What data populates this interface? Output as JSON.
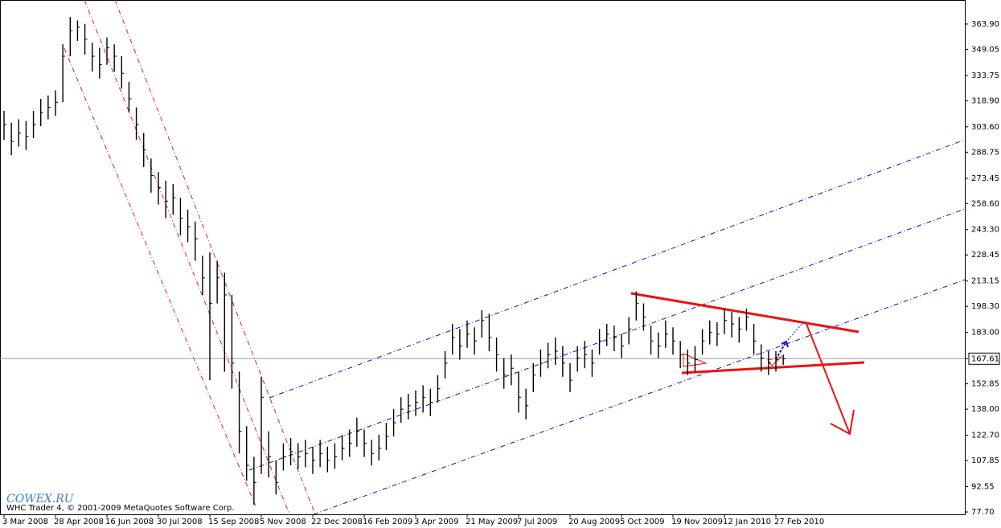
{
  "chart_data": {
    "type": "hlc",
    "watermark": "COWEX.RU",
    "copyright": "WHC Trader 4, © 2001-2009 MetaQuotes Software Corp.",
    "color": "#000000",
    "categories": [
      "3 Mar 2008",
      null,
      null,
      null,
      null,
      null,
      null,
      "28 Apr 2008",
      null,
      null,
      null,
      null,
      null,
      null,
      "16 Jun 2008",
      null,
      null,
      null,
      null,
      null,
      null,
      "30 Jul 2008",
      null,
      null,
      null,
      null,
      null,
      null,
      "15 Sep 2008",
      null,
      null,
      null,
      null,
      null,
      null,
      "5 Nov 2008",
      null,
      null,
      null,
      null,
      null,
      null,
      "22 Dec 2008",
      null,
      null,
      null,
      null,
      null,
      null,
      "16 Feb 2009",
      null,
      null,
      null,
      null,
      null,
      null,
      "3 Apr 2009",
      null,
      null,
      null,
      null,
      null,
      null,
      "21 May 2009",
      null,
      null,
      null,
      null,
      null,
      null,
      "7 Jul 2009",
      null,
      null,
      null,
      null,
      null,
      null,
      "20 Aug 2009",
      null,
      null,
      null,
      null,
      null,
      null,
      "5 Oct 2009",
      null,
      null,
      null,
      null,
      null,
      null,
      "19 Nov 2009",
      null,
      null,
      null,
      null,
      null,
      null,
      "12 Jan 2010",
      null,
      null,
      null,
      null,
      null,
      null,
      "27 Feb 2010",
      null
    ],
    "high": [
      313,
      306,
      308,
      307,
      313,
      320,
      322,
      325,
      352,
      368,
      366,
      364,
      353,
      350,
      356,
      352,
      345,
      330,
      315,
      300,
      285,
      277,
      272,
      270,
      262,
      255,
      248,
      228,
      230,
      225,
      218,
      205,
      160,
      128,
      110,
      157,
      125,
      108,
      118,
      121,
      118,
      120,
      116,
      120,
      116,
      118,
      123,
      126,
      133,
      126,
      120,
      123,
      130,
      138,
      145,
      147,
      149,
      152,
      150,
      158,
      172,
      188,
      185,
      190,
      186,
      196,
      194,
      180,
      168,
      170,
      160,
      150,
      165,
      173,
      177,
      180,
      175,
      165,
      175,
      178,
      173,
      185,
      188,
      187,
      182,
      192,
      207,
      200,
      187,
      183,
      190,
      186,
      178,
      173,
      175,
      185,
      190,
      189,
      197,
      195,
      192,
      197,
      188,
      176,
      172,
      172,
      170
    ],
    "low": [
      296,
      287,
      292,
      290,
      297,
      304,
      308,
      310,
      318,
      345,
      354,
      346,
      336,
      332,
      340,
      336,
      326,
      312,
      296,
      280,
      265,
      258,
      250,
      252,
      240,
      236,
      225,
      205,
      155,
      200,
      160,
      150,
      112,
      96,
      82,
      100,
      98,
      88,
      102,
      105,
      103,
      104,
      100,
      104,
      101,
      103,
      108,
      110,
      116,
      110,
      105,
      108,
      114,
      122,
      130,
      132,
      134,
      136,
      134,
      142,
      156,
      170,
      167,
      174,
      170,
      180,
      172,
      160,
      150,
      152,
      136,
      132,
      148,
      157,
      162,
      164,
      157,
      148,
      160,
      162,
      157,
      170,
      175,
      172,
      168,
      176,
      190,
      184,
      170,
      168,
      174,
      170,
      162,
      158,
      160,
      170,
      176,
      175,
      182,
      180,
      177,
      184,
      170,
      160,
      158,
      160,
      164
    ],
    "close": [
      305,
      295,
      300,
      298,
      305,
      312,
      315,
      318,
      345,
      360,
      362,
      355,
      345,
      340,
      350,
      345,
      335,
      320,
      305,
      290,
      275,
      268,
      260,
      262,
      250,
      245,
      238,
      215,
      200,
      215,
      205,
      165,
      125,
      105,
      95,
      145,
      110,
      95,
      110,
      113,
      110,
      112,
      108,
      112,
      108,
      110,
      115,
      118,
      125,
      118,
      112,
      115,
      122,
      130,
      138,
      140,
      142,
      145,
      142,
      150,
      165,
      180,
      175,
      182,
      178,
      190,
      180,
      170,
      158,
      162,
      145,
      140,
      158,
      165,
      170,
      172,
      165,
      155,
      168,
      170,
      165,
      178,
      182,
      180,
      175,
      185,
      200,
      192,
      178,
      175,
      182,
      178,
      170,
      165,
      167,
      178,
      183,
      182,
      190,
      188,
      185,
      192,
      178,
      168,
      165,
      167,
      167.61
    ],
    "ylim": [
      76.3,
      378.0
    ],
    "yticks": [
      {
        "value": 363.9,
        "label": "363.90"
      },
      {
        "value": 349.05,
        "label": "349.05"
      },
      {
        "value": 333.75,
        "label": "333.75"
      },
      {
        "value": 318.9,
        "label": "318.90"
      },
      {
        "value": 303.6,
        "label": "303.60"
      },
      {
        "value": 288.75,
        "label": "288.75"
      },
      {
        "value": 273.45,
        "label": "273.45"
      },
      {
        "value": 258.6,
        "label": "258.60"
      },
      {
        "value": 243.3,
        "label": "243.30"
      },
      {
        "value": 228.45,
        "label": "228.45"
      },
      {
        "value": 213.15,
        "label": "213.15"
      },
      {
        "value": 198.3,
        "label": "198.30"
      },
      {
        "value": 183,
        "label": "183.00"
      },
      167.61,
      {
        "value": 152.85,
        "label": "152.85"
      },
      {
        "value": 138,
        "label": "138.00"
      },
      {
        "value": 122.7,
        "label": "122.70"
      },
      {
        "value": 107.85,
        "label": "107.85"
      },
      {
        "value": 92.55,
        "label": "92.55"
      },
      {
        "value": 77.7,
        "label": "77.70"
      }
    ]
  }
}
